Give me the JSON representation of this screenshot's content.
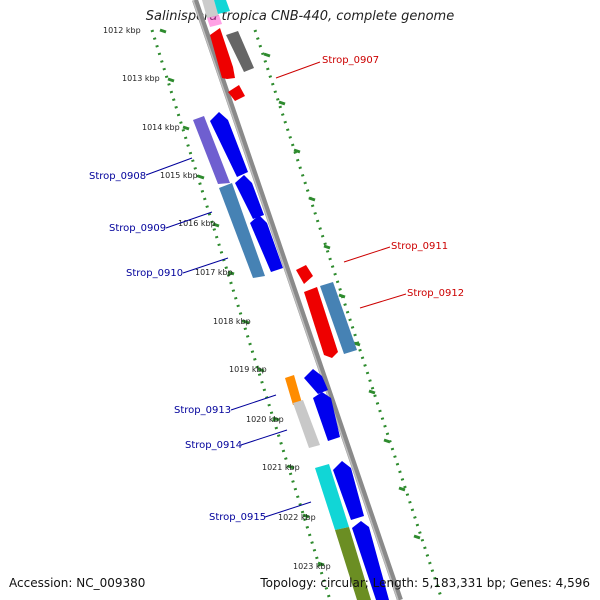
{
  "title": {
    "organism": "Salinispora tropica",
    "strain": " CNB-440, complete genome"
  },
  "footer": {
    "accession": "Accession: NC_009380",
    "summary": "Topology: circular; Length: 5,183,331 bp; Genes: 4,596"
  },
  "colors": {
    "backbone": "#8a8a8a",
    "tick_ruler": "#2e8b2e",
    "forward_label": "#cc0000",
    "reverse_label": "#00009b"
  },
  "ruler_labels": [
    "1012 kbp",
    "1013 kbp",
    "1014 kbp",
    "1015 kbp",
    "1016 kbp",
    "1017 kbp",
    "1018 kbp",
    "1019 kbp",
    "1020 kbp",
    "1021 kbp",
    "1022 kbp",
    "1023 kbp"
  ],
  "gene_labels": {
    "forward": [
      "Strop_0907",
      "Strop_0911",
      "Strop_0912"
    ],
    "reverse": [
      "Strop_0908",
      "Strop_0909",
      "Strop_0910",
      "Strop_0913",
      "Strop_0914",
      "Strop_0915"
    ]
  }
}
